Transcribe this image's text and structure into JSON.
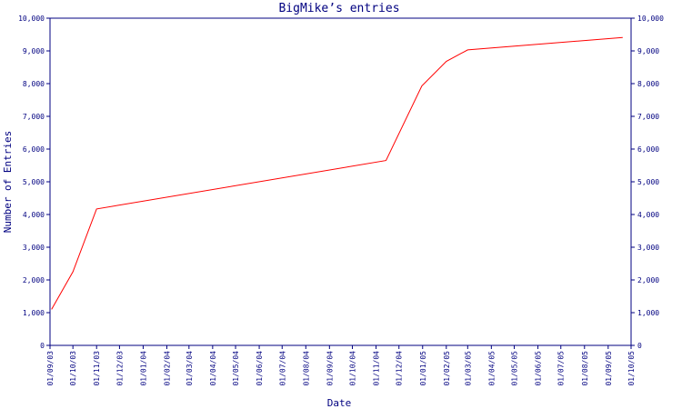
{
  "chart_data": {
    "type": "line",
    "title": "BigMike’s entries",
    "xlabel": "Date",
    "ylabel": "Number of Entries",
    "ylim": [
      0,
      10000
    ],
    "yticks": [
      0,
      1000,
      2000,
      3000,
      4000,
      5000,
      6000,
      7000,
      8000,
      9000,
      10000
    ],
    "ytick_labels": [
      "0",
      "1,000",
      "2,000",
      "3,000",
      "4,000",
      "5,000",
      "6,000",
      "7,000",
      "8,000",
      "9,000",
      "10,000"
    ],
    "xlim": [
      "2003-09-01",
      "2005-10-01"
    ],
    "xtick_dates": [
      "2003-09-01",
      "2003-10-01",
      "2003-11-01",
      "2003-12-01",
      "2004-01-01",
      "2004-02-01",
      "2004-03-01",
      "2004-04-01",
      "2004-05-01",
      "2004-06-01",
      "2004-07-01",
      "2004-08-01",
      "2004-09-01",
      "2004-10-01",
      "2004-11-01",
      "2004-12-01",
      "2005-01-01",
      "2005-02-01",
      "2005-03-01",
      "2005-04-01",
      "2005-05-01",
      "2005-06-01",
      "2005-07-01",
      "2005-08-01",
      "2005-09-01",
      "2005-10-01"
    ],
    "xtick_labels": [
      "01/09/03",
      "01/10/03",
      "01/11/03",
      "01/12/03",
      "01/01/04",
      "01/02/04",
      "01/03/04",
      "01/04/04",
      "01/05/04",
      "01/06/04",
      "01/07/04",
      "01/08/04",
      "01/09/04",
      "01/10/04",
      "01/11/04",
      "01/12/04",
      "01/01/05",
      "01/02/05",
      "01/03/05",
      "01/04/05",
      "01/05/05",
      "01/06/05",
      "01/07/05",
      "01/08/05",
      "01/09/05",
      "01/10/05"
    ],
    "grid": false,
    "series": [
      {
        "color": "#ff0000",
        "points": [
          {
            "x": "2003-09-03",
            "y": 1100
          },
          {
            "x": "2003-10-01",
            "y": 2250
          },
          {
            "x": "2003-11-01",
            "y": 4170
          },
          {
            "x": "2004-11-14",
            "y": 5650
          },
          {
            "x": "2004-12-31",
            "y": 7930
          },
          {
            "x": "2005-02-01",
            "y": 8680
          },
          {
            "x": "2005-03-01",
            "y": 9030
          },
          {
            "x": "2005-09-20",
            "y": 9410
          }
        ]
      }
    ],
    "colors": {
      "axis": "#000080",
      "text": "#000080",
      "line": "#ff0000",
      "background": "#ffffff"
    }
  }
}
